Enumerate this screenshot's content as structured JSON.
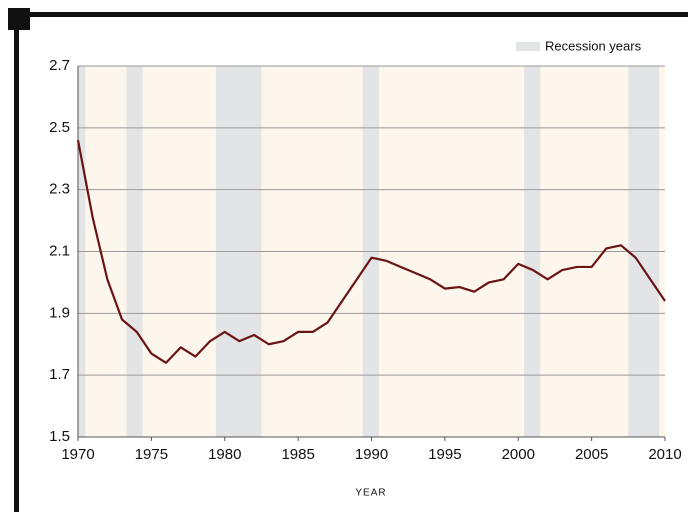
{
  "chart_data": {
    "type": "line",
    "x_label": "YEAR",
    "legend_label": "Recession years",
    "recession_color": "#e3e4e6",
    "background_color": "#fcf6ec",
    "recessions": [
      [
        1970,
        1970.5
      ],
      [
        1973.3,
        1974.4
      ],
      [
        1979.4,
        1982.5
      ],
      [
        1989.4,
        1990.5
      ],
      [
        2000.4,
        2001.5
      ],
      [
        2007.5,
        2009.6
      ]
    ],
    "x": [
      1970,
      1971,
      1972,
      1973,
      1974,
      1975,
      1976,
      1977,
      1978,
      1979,
      1980,
      1981,
      1982,
      1983,
      1984,
      1985,
      1986,
      1987,
      1988,
      1989,
      1990,
      1991,
      1992,
      1993,
      1994,
      1995,
      1996,
      1997,
      1998,
      1999,
      2000,
      2001,
      2002,
      2003,
      2004,
      2005,
      2006,
      2007,
      2008,
      2009,
      2010
    ],
    "series": [
      {
        "color": "#6b1416",
        "values": [
          2.46,
          2.21,
          2.01,
          1.88,
          1.84,
          1.77,
          1.74,
          1.79,
          1.76,
          1.81,
          1.84,
          1.81,
          1.83,
          1.8,
          1.81,
          1.84,
          1.84,
          1.87,
          1.94,
          2.01,
          2.08,
          2.07,
          2.05,
          2.03,
          2.01,
          1.98,
          1.985,
          1.97,
          2.0,
          2.01,
          2.06,
          2.04,
          2.01,
          2.04,
          2.05,
          2.05,
          2.11,
          2.12,
          2.08,
          2.01,
          1.94
        ]
      }
    ],
    "xlim": [
      1970,
      2010
    ],
    "xticks": [
      1970,
      1975,
      1980,
      1985,
      1990,
      1995,
      2000,
      2005,
      2010
    ],
    "ylim": [
      1.5,
      2.7
    ],
    "yticks": [
      1.5,
      1.7,
      1.9,
      2.1,
      2.3,
      2.5,
      2.7
    ],
    "grid": true
  }
}
